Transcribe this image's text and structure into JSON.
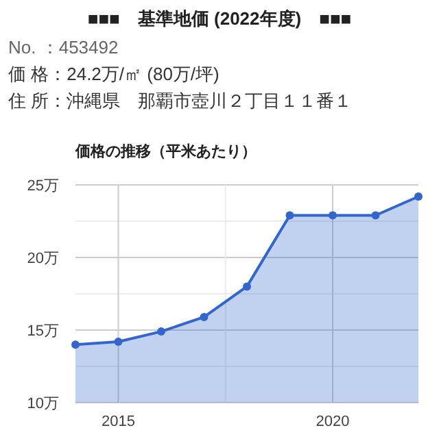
{
  "chart_data": {
    "type": "area",
    "title": "■■■　基準地価 (2022年度)　■■■",
    "subtitle": "価格の推移（平米あたり）",
    "annotations": [
      "No. ：453492",
      "価 格：24.2万/㎡ (80万/坪)",
      "住 所：沖縄県　那覇市壺川２丁目１１番１"
    ],
    "x": [
      2014,
      2015,
      2016,
      2017,
      2018,
      2019,
      2020,
      2021,
      2022
    ],
    "values": [
      14.0,
      14.2,
      14.9,
      15.9,
      18.0,
      22.9,
      22.9,
      22.9,
      24.2
    ],
    "color": "#3366cc",
    "xlim": [
      2014,
      2022
    ],
    "xticks": [
      2015,
      {
        "value": 2017.5,
        "label": null
      },
      2020
    ],
    "ylim": [
      10,
      25
    ],
    "yticks": [
      {
        "value": 10,
        "label": "10万"
      },
      {
        "value": 12.5,
        "label": null
      },
      {
        "value": 15,
        "label": "15万"
      },
      {
        "value": 17.5,
        "label": null
      },
      {
        "value": 20,
        "label": "20万"
      },
      {
        "value": 22.5,
        "label": null
      },
      {
        "value": 25,
        "label": "25万"
      }
    ],
    "grid": true,
    "marker": "circle"
  }
}
